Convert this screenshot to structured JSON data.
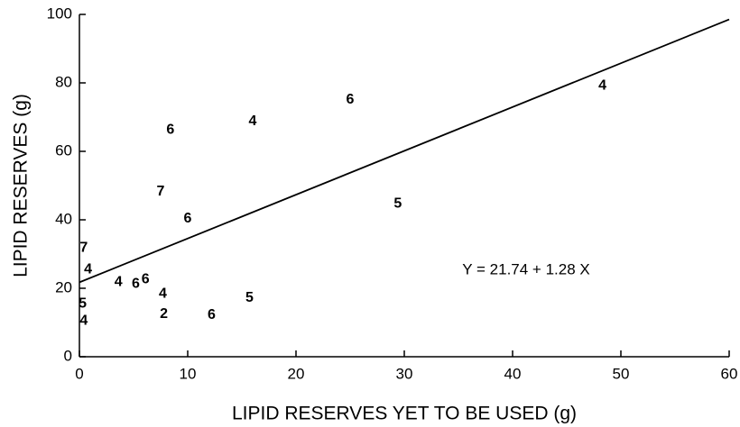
{
  "chart_data": {
    "type": "scatter",
    "x_label": "LIPID RESERVES YET TO BE USED (g)",
    "y_label": "LIPID RESERVES (g)",
    "x": [
      48.3,
      25,
      16,
      8.4,
      7.5,
      10,
      29.4,
      0.4,
      0.8,
      3.6,
      5.2,
      6.1,
      7.7,
      0.3,
      0.4,
      7.8,
      12.2,
      15.7
    ],
    "values": [
      79.2,
      75,
      68.7,
      66.3,
      48.2,
      40.3,
      44.7,
      31.8,
      25.5,
      21.8,
      21.3,
      22.6,
      18.4,
      15.5,
      10.5,
      12.4,
      12.1,
      17.1
    ],
    "point_labels": [
      4,
      6,
      4,
      6,
      7,
      6,
      5,
      7,
      4,
      4,
      6,
      6,
      4,
      5,
      4,
      2,
      6,
      5
    ],
    "fit": {
      "intercept": 21.74,
      "slope": 1.28
    },
    "annotation": "Y = 21.74 + 1.28 X",
    "xlim": [
      0,
      60
    ],
    "ylim": [
      0,
      100
    ],
    "xticks": [
      0,
      10,
      20,
      30,
      40,
      50,
      60
    ],
    "yticks": [
      0,
      20,
      40,
      60,
      80,
      100
    ],
    "color": "#000000"
  }
}
